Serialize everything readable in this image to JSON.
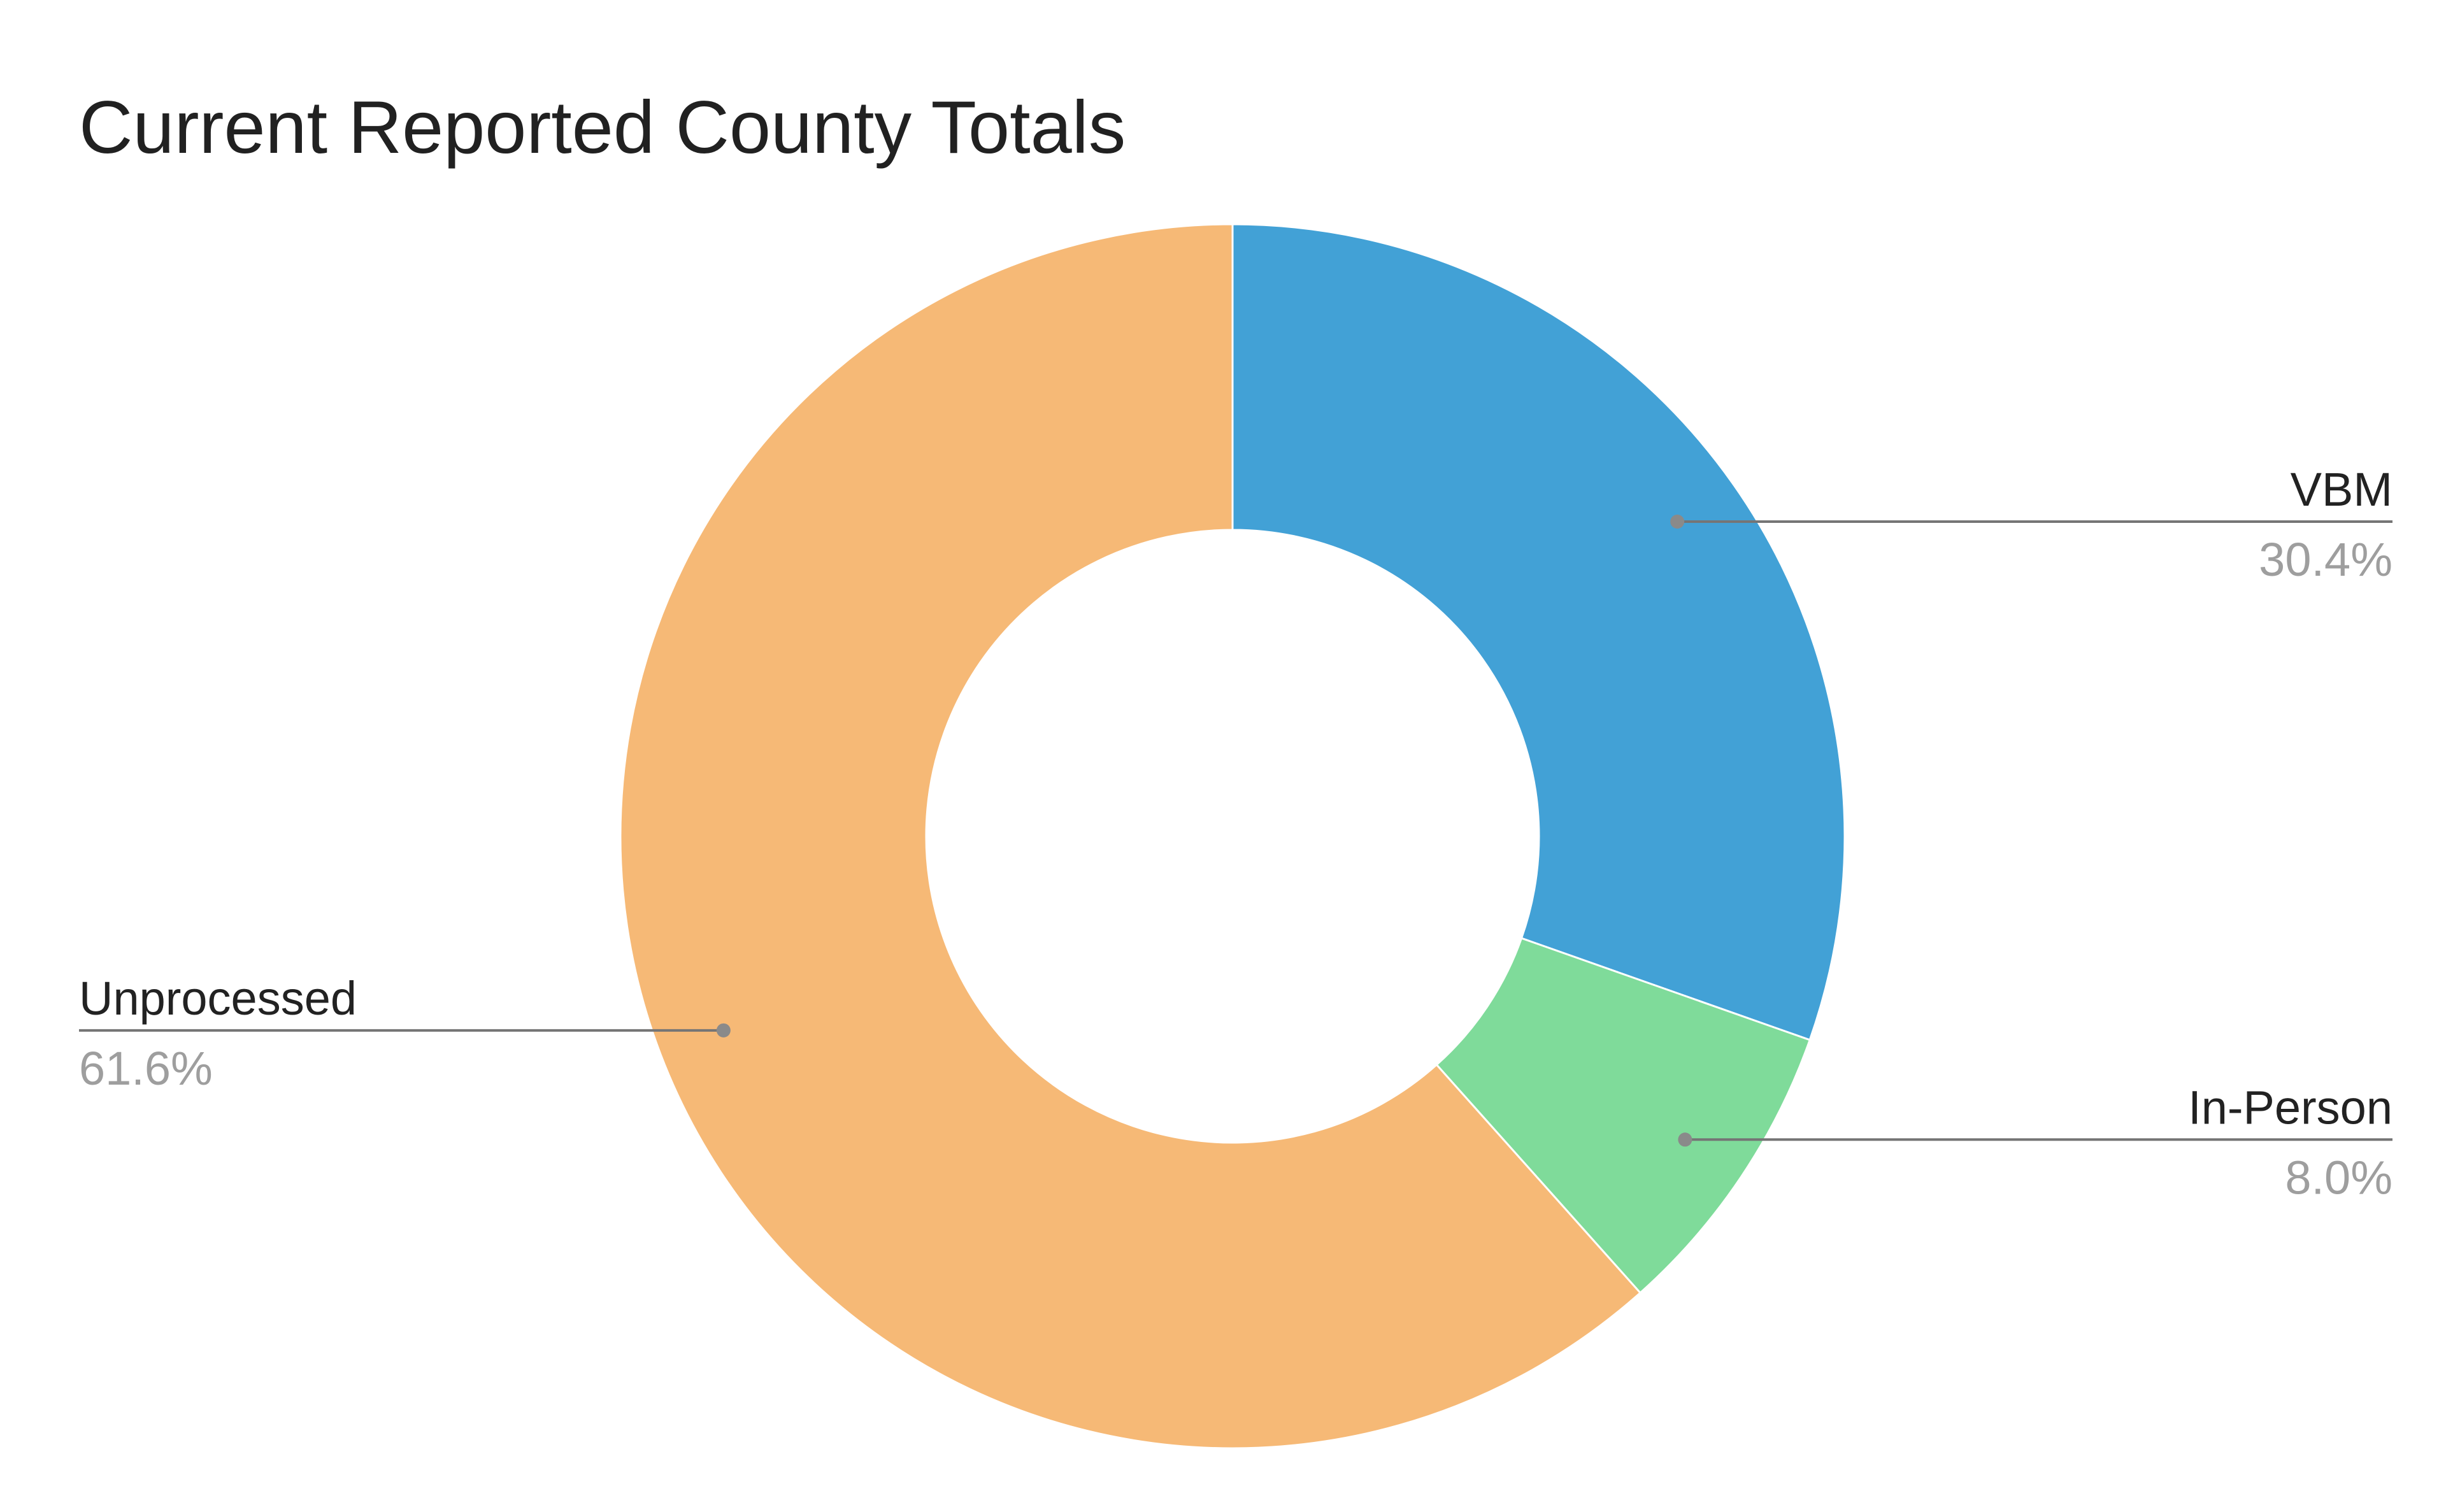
{
  "chart_data": {
    "type": "pie",
    "title": "Current Reported County Totals",
    "donut": true,
    "legend": "labels beside slices",
    "start_angle_deg": 0,
    "direction": "clockwise",
    "slices": [
      {
        "name": "VBM",
        "value": 30.4,
        "label": "30.4%",
        "color": "#42a1d6"
      },
      {
        "name": "In-Person",
        "value": 8.0,
        "label": "8.0%",
        "color": "#7fdb9a"
      },
      {
        "name": "Unprocessed",
        "value": 61.6,
        "label": "61.6%",
        "color": "#f6b976"
      }
    ],
    "colors": {
      "title": "#212121",
      "label_text": "#222222",
      "value_text": "#9e9e9e",
      "leader_line": "#757575"
    }
  }
}
